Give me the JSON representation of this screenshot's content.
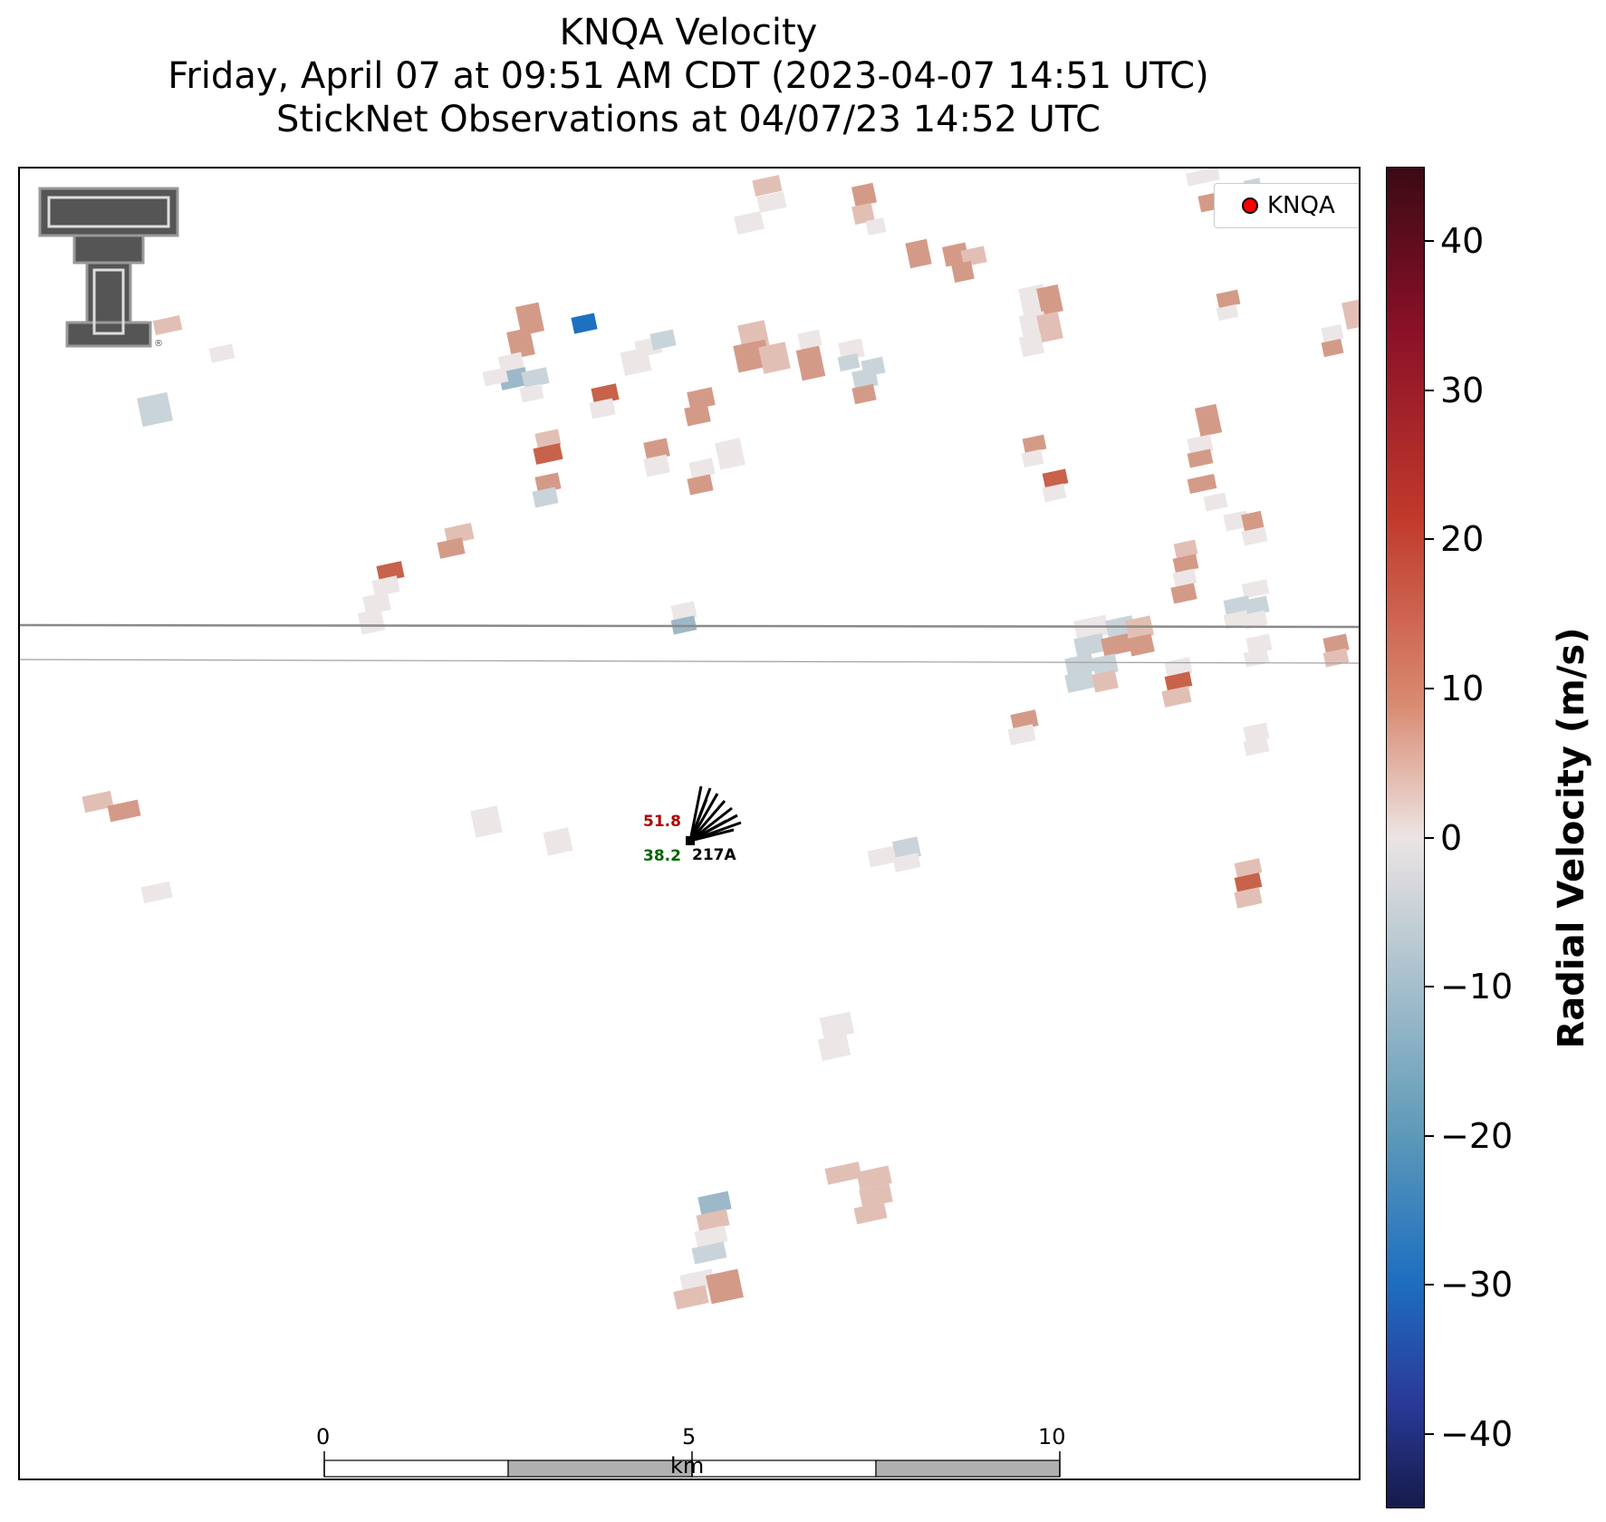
{
  "title": {
    "line1": "KNQA Velocity",
    "line2": "Friday, April 07 at 09:51 AM CDT (2023-04-07 14:51 UTC)",
    "line3": "StickNet Observations at 04/07/23 14:52 UTC"
  },
  "legend": {
    "label": "KNQA",
    "marker_color": "#ff0000"
  },
  "scalebar": {
    "ticks": [
      "0",
      "5",
      "10"
    ],
    "unit": "km"
  },
  "station": {
    "id": "217A",
    "temperature": "51.8",
    "dewpoint": "38.2",
    "temp_color": "#b00000",
    "dew_color": "#006400"
  },
  "colorbar": {
    "title": "Radial Velocity (m/s)",
    "min": -45,
    "max": 45,
    "ticks": [
      40,
      30,
      20,
      10,
      0,
      -10,
      -20,
      -30,
      -40
    ],
    "tick_labels": [
      "40",
      "30",
      "20",
      "10",
      "0",
      "−10",
      "−20",
      "−30",
      "−40"
    ]
  },
  "logo": {
    "name": "Texas Tech Double T"
  }
}
